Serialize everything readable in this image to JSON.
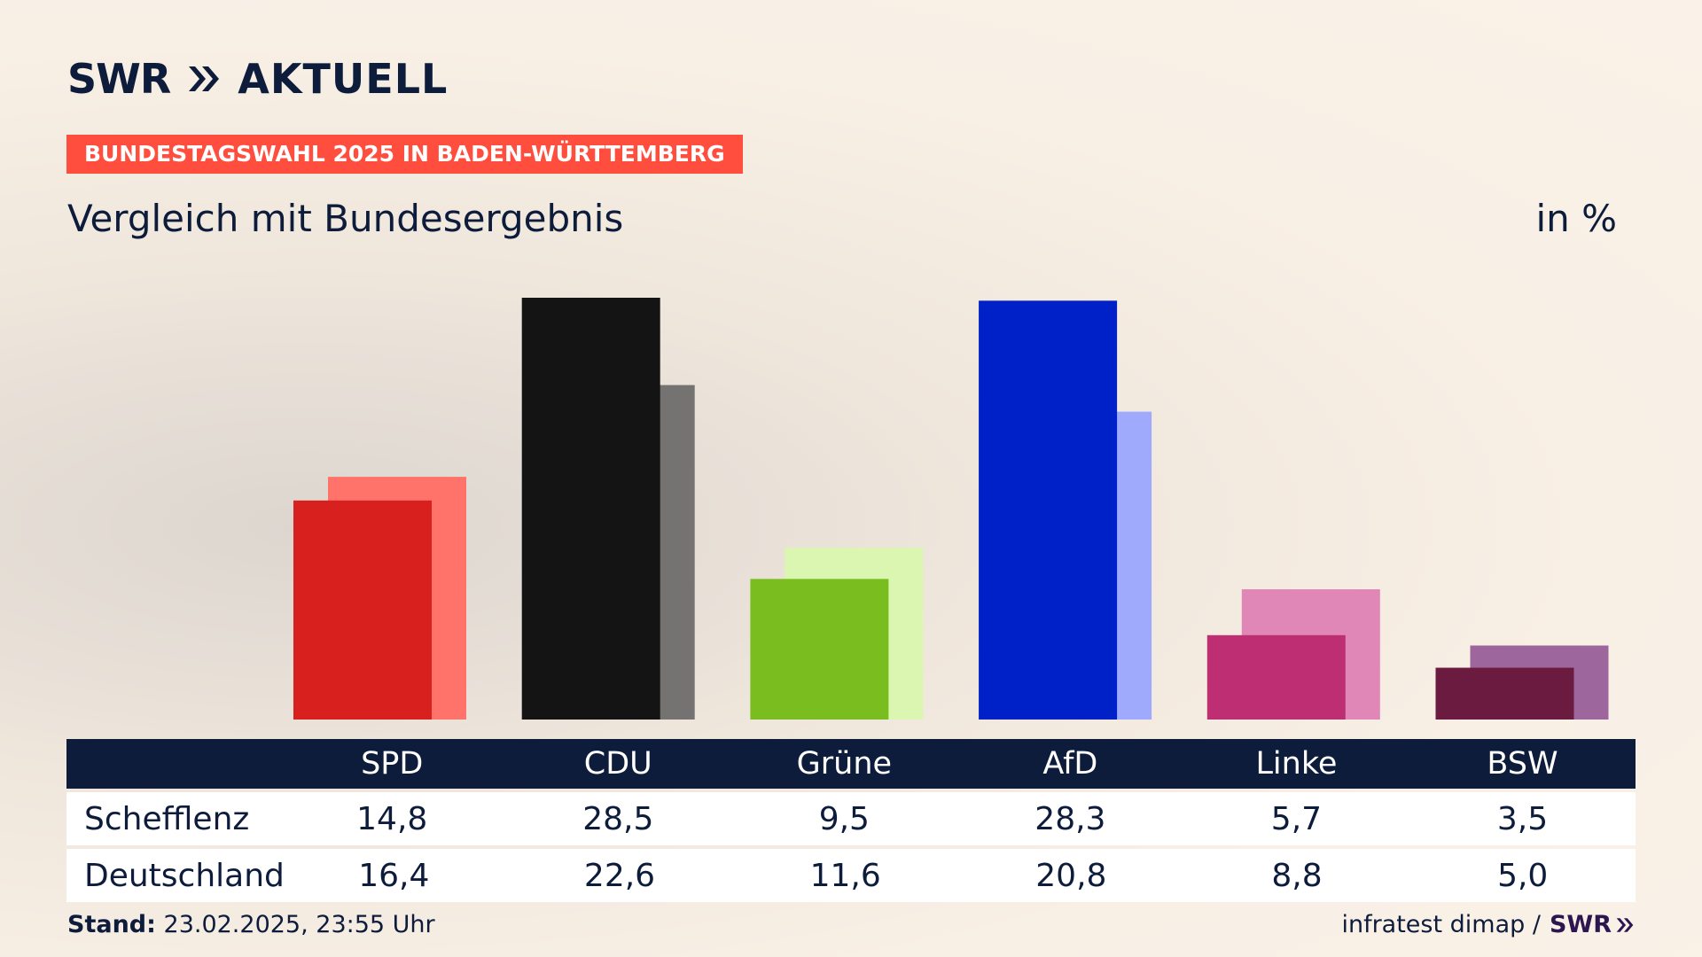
{
  "brand": {
    "swr": "SWR",
    "aktuell": "AKTUELL"
  },
  "tag": "BUNDESTAGSWAHL 2025 IN BADEN-WÜRTTEMBERG",
  "subtitle": "Vergleich mit Bundesergebnis",
  "unit": "in %",
  "table": {
    "rows": [
      {
        "label": "Schefflenz"
      },
      {
        "label": "Deutschland"
      }
    ]
  },
  "footer": {
    "stand_label": "Stand:",
    "stand_value": "23.02.2025, 23:55 Uhr",
    "source": "infratest dimap /",
    "swr": "SWR"
  },
  "chart_data": {
    "type": "bar",
    "title": "Vergleich mit Bundesergebnis",
    "categories": [
      "SPD",
      "CDU",
      "Grüne",
      "AfD",
      "Linke",
      "BSW"
    ],
    "series": [
      {
        "name": "Schefflenz",
        "values": [
          14.8,
          28.5,
          9.5,
          28.3,
          5.7,
          3.5
        ]
      },
      {
        "name": "Deutschland",
        "values": [
          16.4,
          22.6,
          11.6,
          20.8,
          8.8,
          5.0
        ]
      }
    ],
    "ylim": [
      0,
      28.5
    ],
    "grid": false,
    "colors": {
      "primary": [
        "#d8201f",
        "#141414",
        "#7abd1e",
        "#0020c8",
        "#bd2f72",
        "#6b1a40"
      ],
      "secondary": [
        "#ff736b",
        "#757371",
        "#dbf6b1",
        "#9faafd",
        "#e087b7",
        "#9d669d"
      ]
    },
    "label_text_color": "#0e1c3c"
  },
  "colors": {
    "navy": "#0e1c3c",
    "tag_bg": "#ff4d3e"
  }
}
